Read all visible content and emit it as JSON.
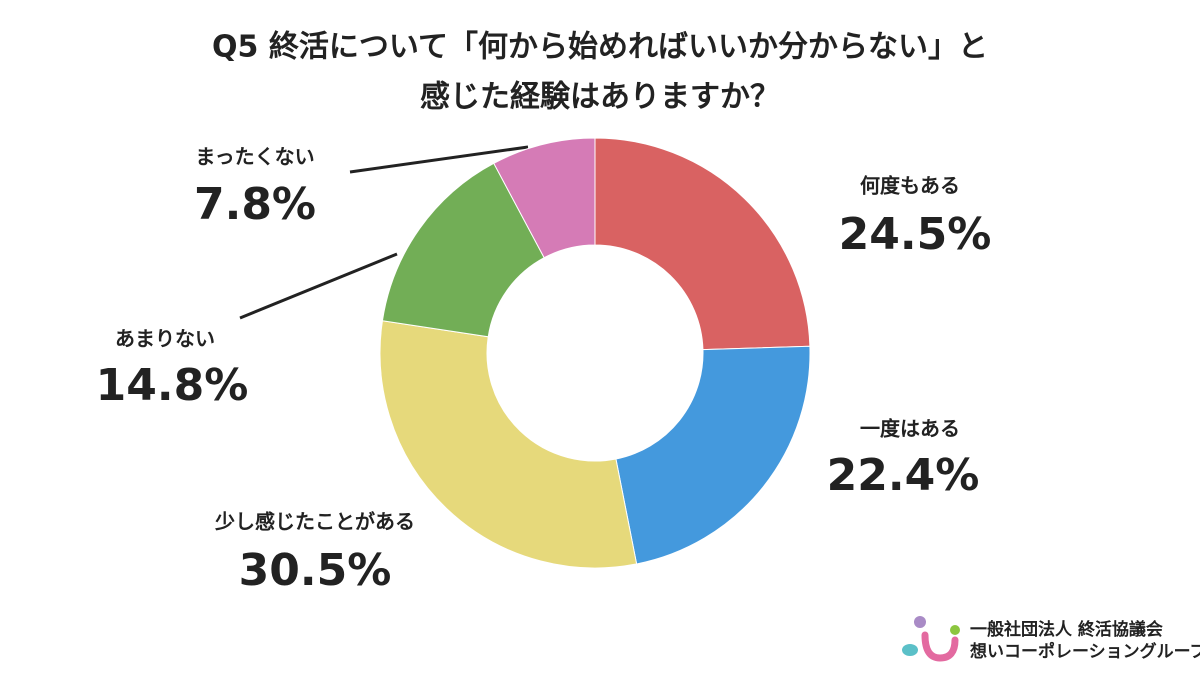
{
  "chart_data": {
    "type": "donut",
    "title": [
      "Q5 終活について「何から始めればいいか分からない」と",
      "感じた経験はありますか？"
    ],
    "categories": [
      "何度もある",
      "一度はある",
      "少し感じたことがある",
      "あまりない",
      "まったくない"
    ],
    "values": [
      24.5,
      22.4,
      30.5,
      14.8,
      7.8
    ],
    "value_labels": [
      "24.5%",
      "22.4%",
      "30.5%",
      "14.8%",
      "7.8%"
    ],
    "colors": [
      "#d96262",
      "#4499dd",
      "#e6d97b",
      "#72ae56",
      "#d57bb6"
    ]
  },
  "footer": {
    "organization": "一般社団法人 終活協議会",
    "group": "想いコーポレーショングループ"
  }
}
